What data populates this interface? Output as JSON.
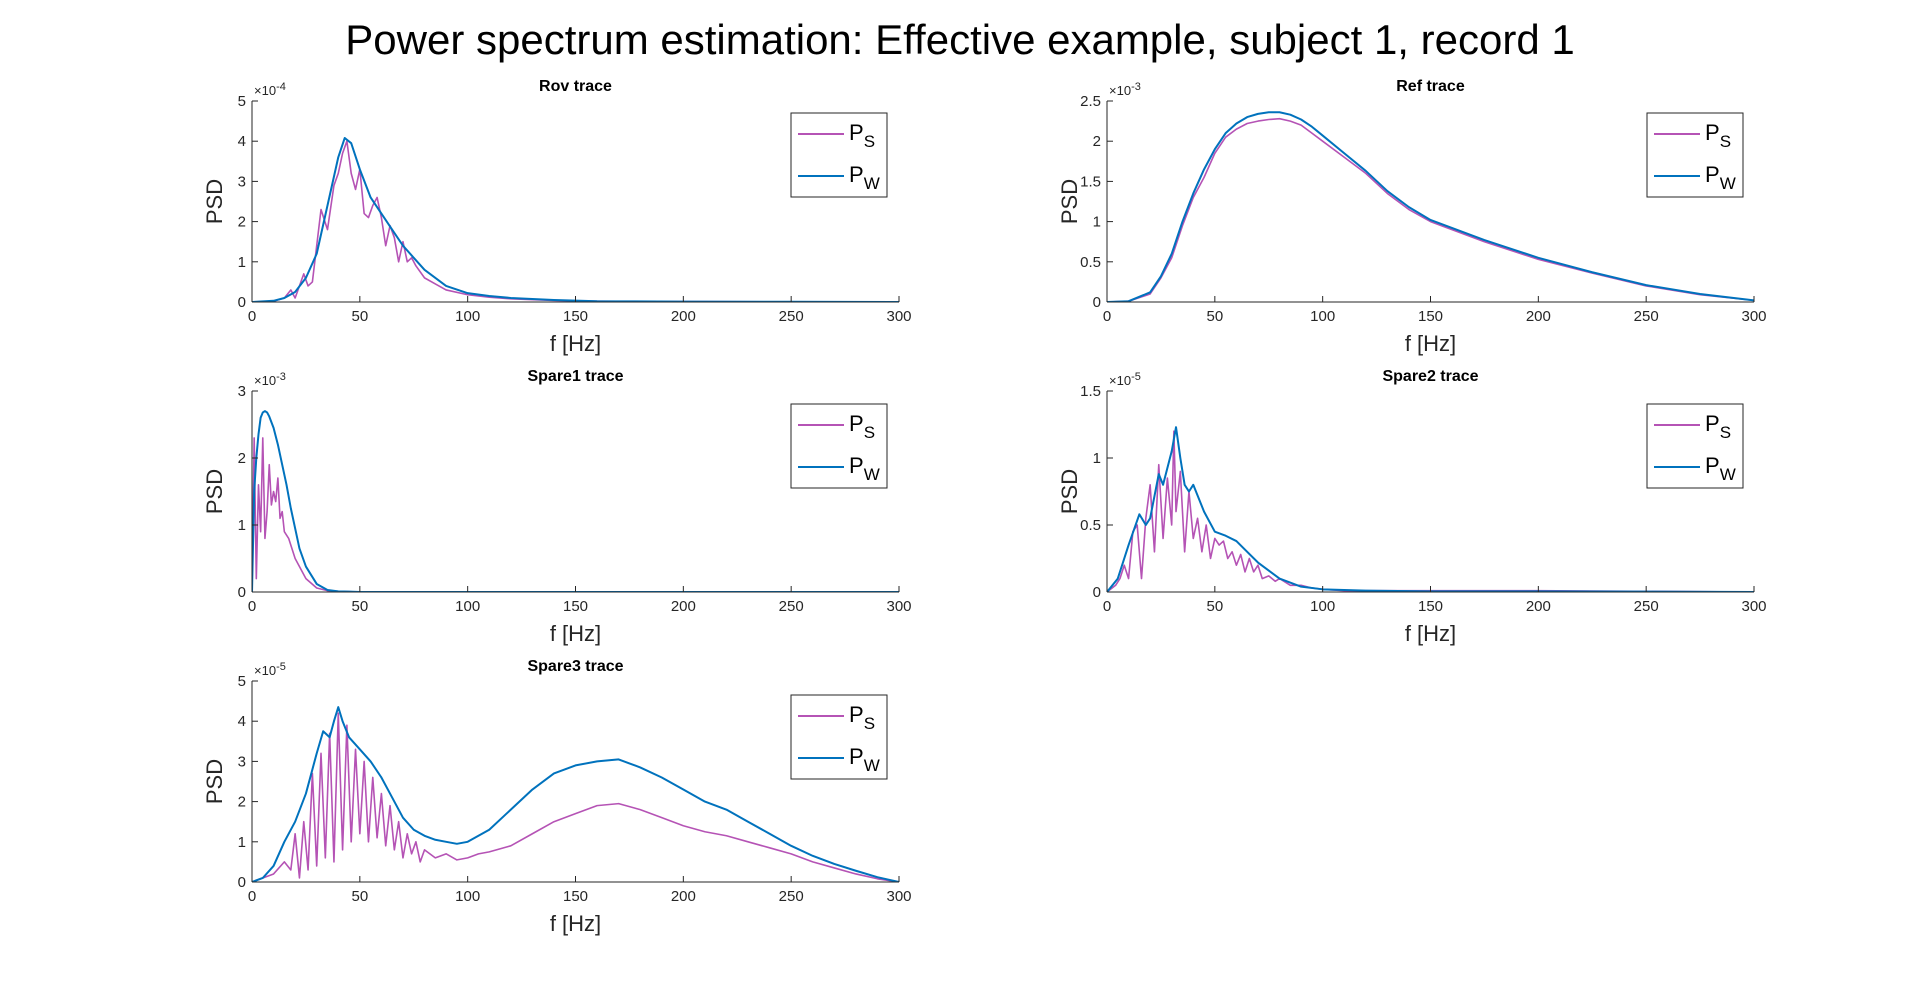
{
  "figure": {
    "suptitle": "Power spectrum estimation: Effective example, subject 1, record 1"
  },
  "colors": {
    "ps": "#b553b5",
    "pw": "#0072bd",
    "axis": "#262626"
  },
  "chart_data": [
    {
      "type": "line",
      "title": "Rov trace",
      "xlabel": "f [Hz]",
      "ylabel": "PSD",
      "exponent": "-4",
      "xlim": [
        0,
        300
      ],
      "ylim": [
        0,
        5
      ],
      "xticks": [
        0,
        50,
        100,
        150,
        200,
        250,
        300
      ],
      "yticks": [
        0,
        1,
        2,
        3,
        4,
        5
      ],
      "ytick_labels": [
        "0",
        "1",
        "2",
        "3",
        "4",
        "5"
      ],
      "grid": false,
      "legend_position": "top-right",
      "series": [
        {
          "name": "P_S",
          "label_main": "P",
          "label_sub": "S",
          "color": "#b553b5",
          "x": [
            0,
            10,
            15,
            18,
            20,
            24,
            26,
            28,
            32,
            35,
            38,
            40,
            42,
            44,
            46,
            48,
            50,
            52,
            54,
            56,
            58,
            60,
            62,
            64,
            66,
            68,
            70,
            72,
            74,
            76,
            80,
            85,
            90,
            100,
            110,
            120,
            140,
            160,
            200,
            250,
            300
          ],
          "y": [
            0,
            0.02,
            0.1,
            0.3,
            0.1,
            0.7,
            0.4,
            0.5,
            2.3,
            1.8,
            2.9,
            3.2,
            3.7,
            4.0,
            3.2,
            2.8,
            3.3,
            2.2,
            2.1,
            2.4,
            2.6,
            2.1,
            1.4,
            1.9,
            1.6,
            1.0,
            1.5,
            1.0,
            1.1,
            0.9,
            0.6,
            0.45,
            0.3,
            0.18,
            0.12,
            0.08,
            0.04,
            0.02,
            0.01,
            0.005,
            0
          ]
        },
        {
          "name": "P_W",
          "label_main": "P",
          "label_sub": "W",
          "color": "#0072bd",
          "x": [
            0,
            10,
            15,
            20,
            25,
            30,
            35,
            40,
            43,
            46,
            50,
            55,
            60,
            65,
            70,
            75,
            80,
            90,
            100,
            110,
            120,
            140,
            160,
            200,
            250,
            300
          ],
          "y": [
            0,
            0.03,
            0.1,
            0.25,
            0.6,
            1.2,
            2.4,
            3.6,
            4.08,
            3.95,
            3.3,
            2.6,
            2.2,
            1.8,
            1.4,
            1.1,
            0.8,
            0.4,
            0.22,
            0.15,
            0.1,
            0.05,
            0.02,
            0.01,
            0.005,
            0
          ]
        }
      ]
    },
    {
      "type": "line",
      "title": "Ref trace",
      "xlabel": "f [Hz]",
      "ylabel": "PSD",
      "exponent": "-3",
      "xlim": [
        0,
        300
      ],
      "ylim": [
        0,
        2.5
      ],
      "xticks": [
        0,
        50,
        100,
        150,
        200,
        250,
        300
      ],
      "yticks": [
        0,
        0.5,
        1,
        1.5,
        2,
        2.5
      ],
      "ytick_labels": [
        "0",
        "0.5",
        "1",
        "1.5",
        "2",
        "2.5"
      ],
      "grid": false,
      "legend_position": "top-right",
      "series": [
        {
          "name": "P_S",
          "label_main": "P",
          "label_sub": "S",
          "color": "#b553b5",
          "x": [
            0,
            10,
            20,
            25,
            30,
            35,
            40,
            45,
            50,
            55,
            60,
            65,
            70,
            75,
            80,
            85,
            90,
            95,
            100,
            110,
            120,
            130,
            140,
            150,
            175,
            200,
            225,
            250,
            275,
            300
          ],
          "y": [
            0,
            0.01,
            0.1,
            0.3,
            0.55,
            0.95,
            1.3,
            1.55,
            1.85,
            2.05,
            2.15,
            2.22,
            2.25,
            2.27,
            2.28,
            2.25,
            2.2,
            2.1,
            2.0,
            1.8,
            1.6,
            1.35,
            1.15,
            1.0,
            0.75,
            0.53,
            0.36,
            0.2,
            0.09,
            0.02
          ]
        },
        {
          "name": "P_W",
          "label_main": "P",
          "label_sub": "W",
          "color": "#0072bd",
          "x": [
            0,
            10,
            20,
            25,
            30,
            35,
            40,
            45,
            50,
            55,
            60,
            65,
            70,
            75,
            80,
            85,
            90,
            95,
            100,
            110,
            120,
            130,
            140,
            150,
            175,
            200,
            225,
            250,
            275,
            300
          ],
          "y": [
            0,
            0.01,
            0.12,
            0.32,
            0.6,
            1.0,
            1.35,
            1.65,
            1.9,
            2.1,
            2.22,
            2.3,
            2.34,
            2.36,
            2.36,
            2.33,
            2.27,
            2.18,
            2.07,
            1.85,
            1.63,
            1.38,
            1.18,
            1.02,
            0.77,
            0.55,
            0.37,
            0.21,
            0.1,
            0.02
          ]
        }
      ]
    },
    {
      "type": "line",
      "title": "Spare1 trace",
      "xlabel": "f [Hz]",
      "ylabel": "PSD",
      "exponent": "-3",
      "xlim": [
        0,
        300
      ],
      "ylim": [
        0,
        3
      ],
      "xticks": [
        0,
        50,
        100,
        150,
        200,
        250,
        300
      ],
      "yticks": [
        0,
        1,
        2,
        3
      ],
      "ytick_labels": [
        "0",
        "1",
        "2",
        "3"
      ],
      "grid": false,
      "legend_position": "top-right",
      "series": [
        {
          "name": "P_S",
          "label_main": "P",
          "label_sub": "S",
          "color": "#b553b5",
          "x": [
            0,
            1,
            2,
            3,
            4,
            5,
            6,
            7,
            8,
            9,
            10,
            11,
            12,
            13,
            14,
            15,
            17,
            20,
            25,
            30,
            35,
            40,
            50,
            300
          ],
          "y": [
            0,
            2.3,
            0.2,
            1.6,
            0.9,
            2.3,
            0.8,
            1.2,
            1.9,
            1.3,
            1.5,
            1.35,
            1.7,
            1.1,
            1.2,
            0.9,
            0.8,
            0.5,
            0.2,
            0.06,
            0.02,
            0.01,
            0,
            0
          ]
        },
        {
          "name": "P_W",
          "label_main": "P",
          "label_sub": "W",
          "color": "#0072bd",
          "x": [
            0,
            1,
            2,
            3,
            4,
            5,
            6,
            7,
            8,
            10,
            12,
            14,
            16,
            18,
            20,
            22,
            25,
            30,
            35,
            40,
            45,
            50,
            300
          ],
          "y": [
            0,
            1.5,
            2.0,
            2.35,
            2.6,
            2.68,
            2.7,
            2.68,
            2.62,
            2.45,
            2.2,
            1.9,
            1.6,
            1.25,
            0.95,
            0.65,
            0.38,
            0.12,
            0.03,
            0.01,
            0.005,
            0,
            0
          ]
        }
      ]
    },
    {
      "type": "line",
      "title": "Spare2 trace",
      "xlabel": "f [Hz]",
      "ylabel": "PSD",
      "exponent": "-5",
      "xlim": [
        0,
        300
      ],
      "ylim": [
        0,
        1.5
      ],
      "xticks": [
        0,
        50,
        100,
        150,
        200,
        250,
        300
      ],
      "yticks": [
        0,
        0.5,
        1,
        1.5
      ],
      "ytick_labels": [
        "0",
        "0.5",
        "1",
        "1.5"
      ],
      "grid": false,
      "legend_position": "top-right",
      "series": [
        {
          "name": "P_S",
          "label_main": "P",
          "label_sub": "S",
          "color": "#b553b5",
          "x": [
            0,
            4,
            6,
            8,
            10,
            12,
            14,
            16,
            18,
            20,
            22,
            24,
            26,
            28,
            30,
            31,
            32,
            34,
            36,
            38,
            40,
            42,
            44,
            46,
            48,
            50,
            52,
            54,
            56,
            58,
            60,
            62,
            64,
            66,
            68,
            70,
            72,
            75,
            78,
            80,
            85,
            90,
            95,
            100,
            110,
            150,
            200,
            300
          ],
          "y": [
            0,
            0.05,
            0.1,
            0.2,
            0.1,
            0.45,
            0.5,
            0.1,
            0.55,
            0.8,
            0.3,
            0.95,
            0.4,
            0.85,
            0.5,
            1.2,
            0.6,
            0.9,
            0.3,
            0.75,
            0.4,
            0.55,
            0.3,
            0.5,
            0.25,
            0.4,
            0.35,
            0.38,
            0.25,
            0.3,
            0.2,
            0.28,
            0.15,
            0.25,
            0.15,
            0.2,
            0.1,
            0.12,
            0.08,
            0.1,
            0.05,
            0.05,
            0.03,
            0.02,
            0.01,
            0.01,
            0.01,
            0
          ]
        },
        {
          "name": "P_W",
          "label_main": "P",
          "label_sub": "W",
          "color": "#0072bd",
          "x": [
            0,
            5,
            10,
            15,
            18,
            20,
            24,
            26,
            30,
            32,
            34,
            36,
            38,
            40,
            42,
            45,
            50,
            55,
            60,
            65,
            70,
            75,
            80,
            90,
            100,
            120,
            150,
            200,
            300
          ],
          "y": [
            0,
            0.1,
            0.35,
            0.58,
            0.5,
            0.55,
            0.88,
            0.8,
            1.05,
            1.23,
            1.0,
            0.8,
            0.75,
            0.8,
            0.72,
            0.6,
            0.45,
            0.42,
            0.38,
            0.3,
            0.22,
            0.16,
            0.1,
            0.04,
            0.02,
            0.01,
            0.005,
            0.005,
            0
          ]
        }
      ]
    },
    {
      "type": "line",
      "title": "Spare3 trace",
      "xlabel": "f [Hz]",
      "ylabel": "PSD",
      "exponent": "-5",
      "xlim": [
        0,
        300
      ],
      "ylim": [
        0,
        5
      ],
      "xticks": [
        0,
        50,
        100,
        150,
        200,
        250,
        300
      ],
      "yticks": [
        0,
        1,
        2,
        3,
        4,
        5
      ],
      "ytick_labels": [
        "0",
        "1",
        "2",
        "3",
        "4",
        "5"
      ],
      "grid": false,
      "legend_position": "top-right",
      "series": [
        {
          "name": "P_S",
          "label_main": "P",
          "label_sub": "S",
          "color": "#b553b5",
          "x": [
            0,
            5,
            10,
            15,
            18,
            20,
            22,
            24,
            26,
            28,
            30,
            32,
            34,
            36,
            38,
            40,
            42,
            44,
            46,
            48,
            50,
            52,
            54,
            56,
            58,
            60,
            62,
            64,
            66,
            68,
            70,
            72,
            74,
            76,
            78,
            80,
            85,
            90,
            95,
            100,
            105,
            110,
            120,
            130,
            140,
            150,
            160,
            170,
            180,
            190,
            200,
            210,
            220,
            230,
            240,
            250,
            260,
            270,
            280,
            290,
            300
          ],
          "y": [
            0,
            0.1,
            0.2,
            0.5,
            0.3,
            1.2,
            0.1,
            1.5,
            0.3,
            2.7,
            0.4,
            3.2,
            0.6,
            3.7,
            0.5,
            4.2,
            0.8,
            3.9,
            1.0,
            3.3,
            1.2,
            3.0,
            1.0,
            2.6,
            1.1,
            2.2,
            0.9,
            1.9,
            0.8,
            1.5,
            0.6,
            1.2,
            0.7,
            1.0,
            0.5,
            0.8,
            0.6,
            0.7,
            0.55,
            0.6,
            0.7,
            0.75,
            0.9,
            1.2,
            1.5,
            1.7,
            1.9,
            1.95,
            1.8,
            1.6,
            1.4,
            1.25,
            1.15,
            1.0,
            0.85,
            0.7,
            0.5,
            0.35,
            0.2,
            0.08,
            0
          ]
        },
        {
          "name": "P_W",
          "label_main": "P",
          "label_sub": "W",
          "color": "#0072bd",
          "x": [
            0,
            5,
            10,
            15,
            20,
            25,
            30,
            33,
            36,
            38,
            40,
            42,
            45,
            50,
            55,
            60,
            65,
            70,
            75,
            80,
            85,
            90,
            95,
            100,
            110,
            120,
            130,
            140,
            150,
            160,
            170,
            175,
            180,
            190,
            200,
            210,
            220,
            230,
            240,
            250,
            260,
            270,
            280,
            290,
            300
          ],
          "y": [
            0,
            0.1,
            0.4,
            1.0,
            1.5,
            2.2,
            3.2,
            3.75,
            3.6,
            4.0,
            4.35,
            4.0,
            3.6,
            3.3,
            3.0,
            2.6,
            2.1,
            1.6,
            1.3,
            1.15,
            1.05,
            1.0,
            0.95,
            1.0,
            1.3,
            1.8,
            2.3,
            2.7,
            2.9,
            3.0,
            3.05,
            2.95,
            2.85,
            2.6,
            2.3,
            2.0,
            1.8,
            1.5,
            1.2,
            0.9,
            0.65,
            0.45,
            0.28,
            0.12,
            0
          ]
        }
      ]
    }
  ]
}
